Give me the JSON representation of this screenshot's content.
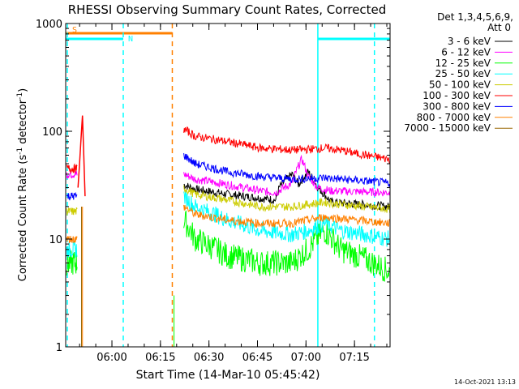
{
  "title": "RHESSI Observing Summary Count Rates, Corrected",
  "chart_data": {
    "type": "line",
    "title": "RHESSI Observing Summary Count Rates, Corrected",
    "xlabel": "Start Time (14-Mar-10 05:45:42)",
    "ylabel_main": "Corrected Count Rate (s",
    "ylabel_sup": "-1",
    "ylabel_tail": " detector",
    "ylabel_end": ")",
    "xlim": [
      "05:45:42",
      "07:26:00"
    ],
    "ylim": [
      1,
      1000
    ],
    "y_scale": "log",
    "x_ticks": [
      "06:00",
      "06:15",
      "06:30",
      "06:45",
      "07:00",
      "07:15"
    ],
    "y_ticks": [
      "1",
      "10",
      "100",
      "1000"
    ],
    "legend_header": [
      "Det 1,3,4,5,6,9,",
      "Att 0"
    ],
    "legend_position": "right",
    "series": [
      {
        "name": "3 - 6 keV",
        "color": "#000000",
        "t": [
          7.0,
          36.5,
          40,
          50,
          60,
          65,
          66,
          70,
          72,
          75,
          78,
          82,
          100
        ],
        "v": [
          null,
          32,
          29,
          26,
          24,
          23,
          30,
          40,
          32,
          42,
          30,
          22,
          20
        ]
      },
      {
        "name": "6 - 12 keV",
        "color": "#ff00ff",
        "t": [
          3.0,
          36.5,
          40,
          50,
          60,
          65,
          70,
          73,
          75,
          78,
          82,
          100
        ],
        "v": [
          40,
          40,
          36,
          32,
          28,
          27,
          33,
          55,
          38,
          30,
          28,
          27
        ]
      },
      {
        "name": "12 - 25 keV",
        "color": "#00ff00",
        "t": [
          3.0,
          36.5,
          40,
          50,
          60,
          70,
          75,
          80,
          85,
          100
        ],
        "v": [
          6,
          15,
          10,
          7,
          6,
          6,
          8,
          12,
          8,
          5
        ]
      },
      {
        "name": "25 - 50 keV",
        "color": "#00ffff",
        "t": [
          3.0,
          36.5,
          40,
          50,
          60,
          70,
          75,
          80,
          85,
          100
        ],
        "v": [
          8,
          25,
          20,
          15,
          12,
          11,
          12,
          14,
          12,
          10
        ]
      },
      {
        "name": "50 - 100 keV",
        "color": "#cccc00",
        "t": [
          3.0,
          36.5,
          40,
          50,
          60,
          70,
          80,
          85,
          100
        ],
        "v": [
          18,
          30,
          26,
          23,
          20,
          20,
          22,
          21,
          19
        ]
      },
      {
        "name": "100 - 300 keV",
        "color": "#ff0000",
        "t": [
          3.0,
          36.5,
          40,
          50,
          60,
          70,
          75,
          80,
          85,
          90,
          100
        ],
        "v": [
          45,
          105,
          90,
          80,
          70,
          67,
          68,
          70,
          67,
          62,
          55
        ]
      },
      {
        "name": "300 - 800 keV",
        "color": "#0000ff",
        "t": [
          3.0,
          36.5,
          40,
          50,
          60,
          70,
          80,
          90,
          100
        ],
        "v": [
          25,
          60,
          50,
          42,
          38,
          36,
          37,
          35,
          33
        ]
      },
      {
        "name": "800 - 7000 keV",
        "color": "#ff8000",
        "t": [
          3.0,
          36.5,
          40,
          50,
          60,
          70,
          80,
          90,
          100
        ],
        "v": [
          10,
          20,
          17,
          15,
          14,
          14,
          16,
          15,
          14
        ]
      },
      {
        "name": "7000 - 15000 keV",
        "color": "#996600",
        "t": [],
        "v": []
      }
    ],
    "spike": {
      "t": [
        3.8,
        4.3,
        4.8,
        5.2,
        5.6,
        6.0
      ],
      "v": [
        30,
        50,
        90,
        140,
        60,
        25
      ]
    },
    "flag_bars": [
      {
        "label": "S",
        "color": "#ff8000",
        "start": "05:45:42",
        "end": "06:18:40"
      },
      {
        "label": "N",
        "color": "#00ffff",
        "start": "05:45:42",
        "end": "06:03:30"
      },
      {
        "label": "",
        "color": "#00ffff",
        "start": "07:03:40",
        "end": "07:26:00"
      }
    ],
    "vertical_markers": [
      {
        "time": "05:45:42",
        "color": "#00ffff",
        "style": "dashed"
      },
      {
        "time": "06:03:30",
        "color": "#00ffff",
        "style": "dashed"
      },
      {
        "time": "06:18:40",
        "color": "#ff8000",
        "style": "dashed"
      },
      {
        "time": "07:03:40",
        "color": "#00ffff",
        "style": "solid"
      },
      {
        "time": "07:21:10",
        "color": "#00ffff",
        "style": "dashed"
      }
    ]
  },
  "timestamp": "14-Oct-2021 13:13"
}
